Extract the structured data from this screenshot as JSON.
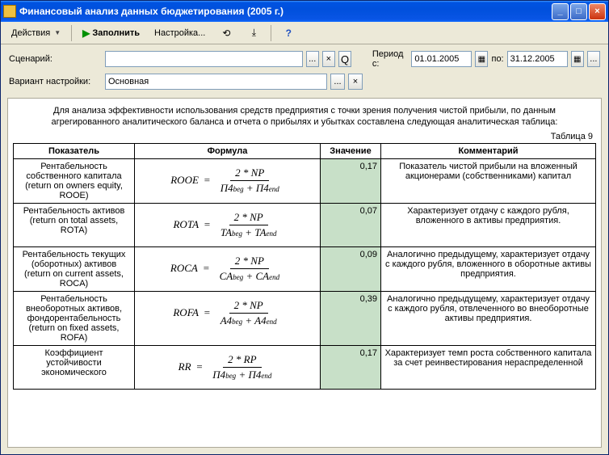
{
  "window": {
    "title": "Финансовый анализ данных бюджетирования (2005 г.)"
  },
  "toolbar": {
    "actions": "Действия",
    "fill": "Заполнить",
    "settings": "Настройка...",
    "help": "?"
  },
  "params": {
    "scenario_label": "Сценарий:",
    "scenario_value": "",
    "variant_label": "Вариант настройки:",
    "variant_value": "Основная",
    "period_from_label": "Период с:",
    "period_from": "01.01.2005",
    "period_to_label": "по:",
    "period_to": "31.12.2005"
  },
  "report": {
    "intro": "Для анализа эффективности использования средств предприятия с точки зрения получения чистой прибыли, по данным агрегированного аналитического баланса и отчета о прибылях и убытках составлена следующая аналитическая таблица:",
    "table_label": "Таблица 9",
    "headers": {
      "indicator": "Показатель",
      "formula": "Формула",
      "value": "Значение",
      "comment": "Комментарий"
    },
    "rows": [
      {
        "indicator": "Рентабельность собственного капитала\n(return on owners equity, ROOE)",
        "lhs": "ROOE",
        "num": "2 * NP",
        "den_a": "П4",
        "den_a_sub": "beg",
        "den_b": "П4",
        "den_b_sub": "end",
        "value": "0,17",
        "comment": "Показатель чистой прибыли на вложенный акционерами (собственниками) капитал"
      },
      {
        "indicator": "Рентабельность активов\n(return on total assets, ROTA)",
        "lhs": "ROTA",
        "num": "2 * NP",
        "den_a": "TA",
        "den_a_sub": "beg",
        "den_b": "TA",
        "den_b_sub": "end",
        "value": "0,07",
        "comment": "Характеризует отдачу с каждого рубля, вложенного в активы предприятия."
      },
      {
        "indicator": "Рентабельность текущих (оборотных) активов\n(return on current assets, ROCA)",
        "lhs": "ROCA",
        "num": "2 * NP",
        "den_a": "CA",
        "den_a_sub": "beg",
        "den_b": "CA",
        "den_b_sub": "end",
        "value": "0,09",
        "comment": "Аналогично предыдущему, характеризует отдачу с каждого рубля, вложенного в оборотные активы предприятия."
      },
      {
        "indicator": "Рентабельность внеоборотных активов, фондорентабельность\n(return on fixed assets, ROFA)",
        "lhs": "ROFA",
        "num": "2 * NP",
        "den_a": "A4",
        "den_a_sub": "beg",
        "den_b": "A4",
        "den_b_sub": "end",
        "value": "0,39",
        "comment": "Аналогично предыдущему, характеризует отдачу с каждого рубля, отвлеченного во внеоборотные активы предприятия."
      },
      {
        "indicator": "Коэффициент устойчивости экономического",
        "lhs": "RR",
        "num": "2 * RP",
        "den_a": "П4",
        "den_a_sub": "beg",
        "den_b": "П4",
        "den_b_sub": "end",
        "value": "0,17",
        "comment": "Характеризует темп роста собственного капитала за счет реинвестирования нераспределенной"
      }
    ]
  },
  "colors": {
    "value_bg": "#c8e0c8",
    "titlebar_start": "#0053e1",
    "titlebar_end": "#3d95ff"
  }
}
